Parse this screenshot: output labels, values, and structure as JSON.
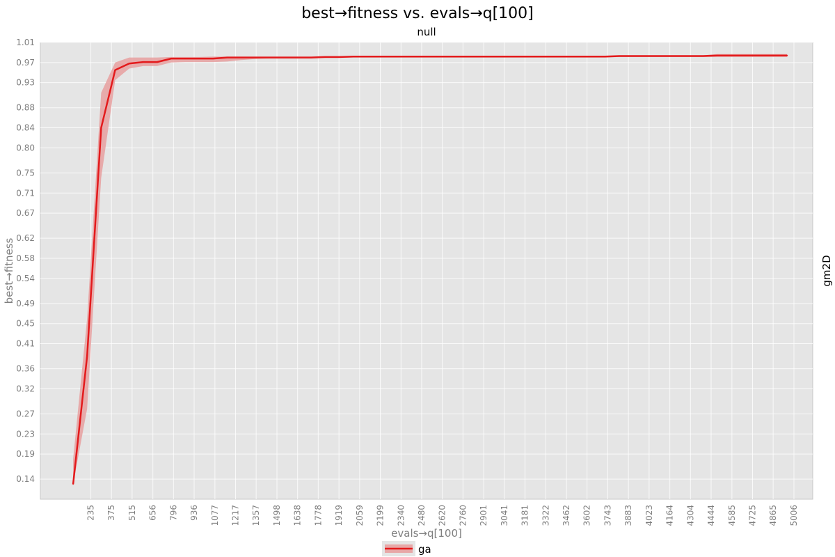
{
  "chart_data": {
    "type": "line",
    "title": "best→fitness vs. evals→q[100]",
    "subtitle": "null",
    "facet_label": "gm2D",
    "xlabel": "evals→q[100]",
    "ylabel": "best→fitness",
    "xlim": [
      20,
      5006
    ],
    "ylim": [
      0.1,
      1.01
    ],
    "grid": true,
    "legend_position": "bottom",
    "x_ticks": [
      "235",
      "375",
      "515",
      "656",
      "796",
      "936",
      "1077",
      "1217",
      "1357",
      "1498",
      "1638",
      "1778",
      "1919",
      "2059",
      "2199",
      "2340",
      "2480",
      "2620",
      "2760",
      "2901",
      "3041",
      "3181",
      "3322",
      "3462",
      "3602",
      "3743",
      "3883",
      "4023",
      "4164",
      "4304",
      "4444",
      "4585",
      "4725",
      "4865",
      "5006"
    ],
    "y_ticks": [
      "0.14",
      "0.19",
      "0.23",
      "0.27",
      "0.32",
      "0.36",
      "0.41",
      "0.45",
      "0.49",
      "0.54",
      "0.58",
      "0.62",
      "0.67",
      "0.71",
      "0.75",
      "0.80",
      "0.84",
      "0.88",
      "0.93",
      "0.97",
      "1.01"
    ],
    "series": [
      {
        "name": "ga",
        "color": "#e31a1c",
        "band_color": "#e8a0a0",
        "x": [
          115,
          210,
          305,
          400,
          495,
          590,
          685,
          780,
          875,
          970,
          1065,
          1160,
          1255,
          1350,
          1445,
          1540,
          1635,
          1730,
          1825,
          1920,
          2015,
          2110,
          2205,
          2300,
          2395,
          2490,
          2585,
          2680,
          2775,
          2870,
          2965,
          3060,
          3155,
          3250,
          3345,
          3440,
          3535,
          3630,
          3725,
          3820,
          3915,
          4010,
          4105,
          4200,
          4295,
          4390,
          4485,
          4580,
          4675,
          4770,
          4865,
          4960
        ],
        "y": [
          0.13,
          0.385,
          0.84,
          0.955,
          0.968,
          0.971,
          0.971,
          0.978,
          0.978,
          0.978,
          0.978,
          0.98,
          0.98,
          0.98,
          0.98,
          0.98,
          0.98,
          0.98,
          0.981,
          0.981,
          0.982,
          0.982,
          0.982,
          0.982,
          0.982,
          0.982,
          0.982,
          0.982,
          0.982,
          0.982,
          0.982,
          0.982,
          0.982,
          0.982,
          0.982,
          0.982,
          0.982,
          0.982,
          0.982,
          0.983,
          0.983,
          0.983,
          0.983,
          0.983,
          0.983,
          0.983,
          0.984,
          0.984,
          0.984,
          0.984,
          0.984,
          0.984
        ],
        "lower": [
          0.13,
          0.28,
          0.74,
          0.935,
          0.958,
          0.963,
          0.963,
          0.97,
          0.971,
          0.971,
          0.971,
          0.972,
          0.975,
          0.977,
          0.978,
          0.978,
          0.978,
          0.978,
          0.979,
          0.979,
          0.98,
          0.98,
          0.98,
          0.98,
          0.98,
          0.98,
          0.98,
          0.98,
          0.98,
          0.98,
          0.98,
          0.98,
          0.98,
          0.98,
          0.98,
          0.98,
          0.98,
          0.98,
          0.98,
          0.981,
          0.981,
          0.981,
          0.981,
          0.981,
          0.981,
          0.981,
          0.981,
          0.981,
          0.981,
          0.981,
          0.981,
          0.981
        ],
        "upper": [
          0.18,
          0.46,
          0.91,
          0.97,
          0.98,
          0.98,
          0.98,
          0.981,
          0.981,
          0.981,
          0.982,
          0.982,
          0.982,
          0.982,
          0.982,
          0.982,
          0.982,
          0.982,
          0.983,
          0.983,
          0.983,
          0.983,
          0.983,
          0.983,
          0.983,
          0.983,
          0.983,
          0.983,
          0.983,
          0.983,
          0.983,
          0.983,
          0.983,
          0.983,
          0.983,
          0.983,
          0.983,
          0.983,
          0.983,
          0.984,
          0.984,
          0.984,
          0.984,
          0.984,
          0.984,
          0.984,
          0.987,
          0.987,
          0.987,
          0.987,
          0.987,
          0.987
        ]
      }
    ]
  }
}
